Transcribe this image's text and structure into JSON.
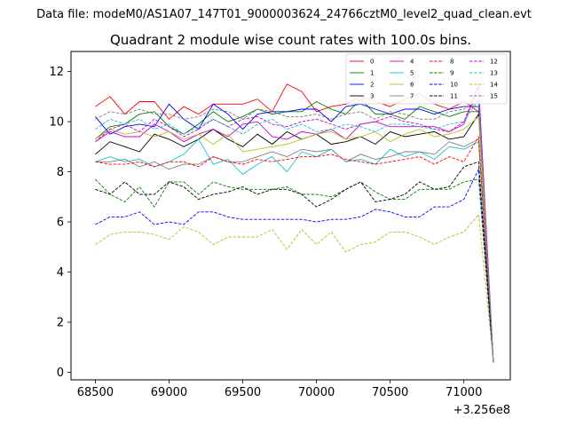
{
  "figure": {
    "suptitle": "Data file: modeM0/AS1A07_147T01_9000003624_24766cztM0_level2_quad_clean.evt"
  },
  "chart_data": {
    "type": "line",
    "title": "Quadrant 2 module wise count rates with 100.0s bins.",
    "xlabel": "",
    "ylabel": "",
    "x_offset_label": "+3.256e8",
    "x_offset": 325600000,
    "xlim": [
      68335,
      71315
    ],
    "ylim": [
      -0.3,
      12.8
    ],
    "xticks": [
      68500,
      69000,
      69500,
      70000,
      70500,
      71000
    ],
    "yticks": [
      0,
      2,
      4,
      6,
      8,
      10,
      12
    ],
    "grid": false,
    "legend": {
      "placement": "top-right",
      "columns": 4
    },
    "x": [
      68500,
      68600,
      68700,
      68800,
      68900,
      69000,
      69100,
      69200,
      69300,
      69400,
      69500,
      69600,
      69700,
      69800,
      69900,
      70000,
      70100,
      70200,
      70300,
      70400,
      70500,
      70600,
      70700,
      70800,
      70900,
      71000,
      71100,
      71200
    ],
    "series": [
      {
        "name": "0",
        "color": "#ff0000",
        "dash": "solid",
        "values": [
          10.6,
          11.0,
          10.3,
          10.8,
          10.8,
          10.1,
          10.6,
          10.3,
          10.7,
          10.7,
          10.7,
          10.9,
          10.4,
          11.5,
          11.2,
          10.4,
          10.6,
          10.7,
          11.0,
          10.8,
          10.6,
          10.9,
          11.1,
          10.7,
          10.5,
          10.8,
          10.4,
          0.4
        ]
      },
      {
        "name": "1",
        "color": "#008000",
        "dash": "solid",
        "values": [
          9.3,
          9.8,
          9.9,
          10.3,
          10.4,
          9.8,
          9.5,
          9.9,
          10.4,
          10.0,
          10.2,
          10.5,
          10.3,
          10.4,
          10.4,
          10.8,
          10.5,
          10.3,
          10.9,
          10.3,
          10.3,
          10.1,
          10.6,
          10.4,
          10.2,
          10.4,
          10.4,
          0.4
        ]
      },
      {
        "name": "2",
        "color": "#0000ff",
        "dash": "solid",
        "values": [
          10.2,
          9.5,
          9.8,
          9.9,
          9.8,
          10.7,
          10.1,
          9.7,
          10.7,
          10.3,
          9.7,
          10.3,
          10.4,
          10.4,
          10.5,
          10.5,
          10.0,
          10.6,
          10.7,
          10.5,
          10.3,
          10.5,
          10.5,
          10.3,
          10.5,
          10.6,
          10.6,
          0.4
        ]
      },
      {
        "name": "3",
        "color": "#000000",
        "dash": "solid",
        "values": [
          8.7,
          9.2,
          9.0,
          8.8,
          9.5,
          9.3,
          9.0,
          9.3,
          9.7,
          9.3,
          9.0,
          9.5,
          9.1,
          9.6,
          9.3,
          9.5,
          9.1,
          9.2,
          9.4,
          9.1,
          9.6,
          9.4,
          9.5,
          9.6,
          9.3,
          9.4,
          10.3,
          0.4
        ]
      },
      {
        "name": "4",
        "color": "#cc00cc",
        "dash": "solid",
        "values": [
          9.2,
          9.6,
          9.4,
          9.4,
          9.9,
          9.6,
          9.2,
          9.5,
          9.7,
          9.4,
          9.9,
          10.0,
          9.4,
          9.3,
          9.6,
          9.5,
          9.7,
          9.3,
          9.9,
          10.0,
          9.8,
          9.8,
          9.8,
          9.8,
          9.6,
          9.9,
          11.4,
          0.4
        ]
      },
      {
        "name": "5",
        "color": "#17becf",
        "dash": "solid",
        "values": [
          8.4,
          8.6,
          8.4,
          8.5,
          8.2,
          8.4,
          8.7,
          9.3,
          8.3,
          8.5,
          7.9,
          8.3,
          8.6,
          8.0,
          8.8,
          8.6,
          8.9,
          8.4,
          8.5,
          8.3,
          8.9,
          8.6,
          8.8,
          8.5,
          9.0,
          8.9,
          9.2,
          0.4
        ]
      },
      {
        "name": "6",
        "color": "#bcbd22",
        "dash": "solid",
        "values": [
          9.3,
          9.7,
          9.5,
          9.6,
          9.4,
          9.6,
          9.3,
          9.5,
          9.1,
          9.5,
          8.8,
          8.9,
          9.0,
          9.1,
          9.3,
          9.5,
          9.6,
          9.3,
          9.4,
          9.6,
          9.2,
          9.5,
          9.7,
          9.4,
          9.5,
          9.7,
          10.2,
          0.4
        ]
      },
      {
        "name": "7",
        "color": "#7f7f7f",
        "dash": "solid",
        "values": [
          8.4,
          8.4,
          8.5,
          8.2,
          8.4,
          8.1,
          8.3,
          8.3,
          8.6,
          8.4,
          8.4,
          8.6,
          8.8,
          8.6,
          8.9,
          8.8,
          8.9,
          8.4,
          8.7,
          8.5,
          8.6,
          8.8,
          8.8,
          8.7,
          9.2,
          9.0,
          9.3,
          0.4
        ]
      },
      {
        "name": "8",
        "color": "#ff0000",
        "dash": "dashed",
        "values": [
          8.4,
          8.3,
          8.3,
          8.4,
          8.2,
          8.4,
          8.4,
          8.2,
          8.6,
          8.4,
          8.3,
          8.5,
          8.4,
          8.5,
          8.6,
          8.6,
          8.7,
          8.5,
          8.4,
          8.3,
          8.4,
          8.5,
          8.6,
          8.3,
          8.6,
          8.4,
          9.4,
          0.4
        ]
      },
      {
        "name": "9",
        "color": "#008000",
        "dash": "dashed",
        "values": [
          7.7,
          7.1,
          6.8,
          7.4,
          6.6,
          7.6,
          7.6,
          7.1,
          7.6,
          7.4,
          7.3,
          7.3,
          7.3,
          7.4,
          7.1,
          7.1,
          7.0,
          7.3,
          7.6,
          7.2,
          6.9,
          6.9,
          7.3,
          7.3,
          7.3,
          7.6,
          7.7,
          0.4
        ]
      },
      {
        "name": "10",
        "color": "#0000ff",
        "dash": "dashed",
        "values": [
          5.9,
          6.2,
          6.2,
          6.4,
          5.9,
          6.0,
          5.9,
          6.4,
          6.4,
          6.2,
          6.1,
          6.1,
          6.1,
          6.1,
          6.1,
          6.0,
          6.1,
          6.1,
          6.2,
          6.5,
          6.4,
          6.2,
          6.2,
          6.6,
          6.6,
          6.9,
          8.1,
          0.4
        ]
      },
      {
        "name": "11",
        "color": "#000000",
        "dash": "dashed",
        "values": [
          7.3,
          7.1,
          7.6,
          7.1,
          7.1,
          7.6,
          7.4,
          6.9,
          7.1,
          7.2,
          7.4,
          7.1,
          7.3,
          7.3,
          7.1,
          6.6,
          6.9,
          7.3,
          7.6,
          6.8,
          6.9,
          7.1,
          7.6,
          7.3,
          7.4,
          8.2,
          8.4,
          0.4
        ]
      },
      {
        "name": "12",
        "color": "#cc00cc",
        "dash": "dashed",
        "values": [
          9.2,
          9.7,
          9.9,
          9.6,
          10.1,
          9.8,
          9.4,
          9.7,
          10.1,
          9.8,
          10.1,
          10.2,
          9.9,
          9.8,
          10.0,
          10.1,
          9.9,
          9.7,
          9.9,
          10.0,
          10.2,
          10.0,
          9.9,
          9.7,
          9.6,
          10.0,
          11.5,
          0.4
        ]
      },
      {
        "name": "13",
        "color": "#17becf",
        "dash": "dashed",
        "values": [
          9.7,
          10.1,
          9.9,
          10.1,
          9.7,
          9.9,
          9.5,
          9.8,
          10.1,
          9.8,
          9.5,
          9.9,
          10.1,
          9.7,
          9.9,
          9.6,
          9.7,
          9.9,
          9.8,
          9.6,
          9.9,
          9.9,
          9.8,
          9.7,
          9.9,
          10.0,
          10.9,
          0.4
        ]
      },
      {
        "name": "14",
        "color": "#bcbd22",
        "dash": "dashed",
        "values": [
          5.1,
          5.5,
          5.6,
          5.6,
          5.5,
          5.3,
          5.8,
          5.6,
          5.1,
          5.4,
          5.4,
          5.4,
          5.7,
          4.9,
          5.7,
          5.1,
          5.6,
          4.8,
          5.1,
          5.2,
          5.6,
          5.6,
          5.4,
          5.1,
          5.4,
          5.6,
          6.3,
          0.4
        ]
      },
      {
        "name": "15",
        "color": "#7f7f7f",
        "dash": "dashed",
        "values": [
          10.1,
          10.4,
          10.3,
          10.5,
          10.3,
          10.3,
          10.1,
          10.2,
          10.5,
          10.4,
          10.1,
          10.5,
          10.4,
          10.2,
          10.2,
          10.3,
          10.1,
          10.3,
          10.4,
          10.1,
          10.4,
          10.3,
          10.1,
          10.1,
          10.4,
          10.5,
          10.8,
          0.4
        ]
      }
    ]
  }
}
